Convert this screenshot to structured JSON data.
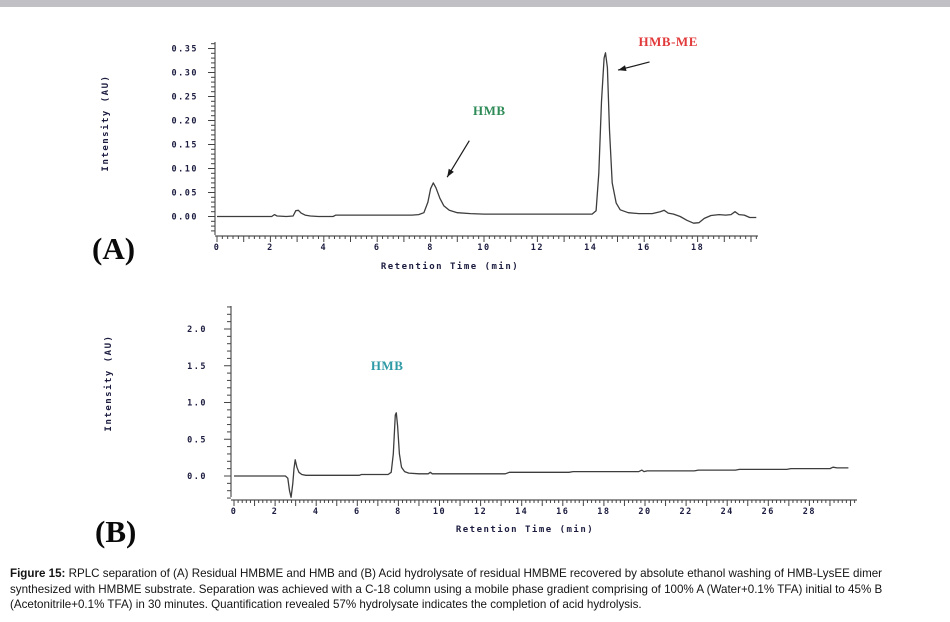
{
  "page": {
    "top_bar_color": "#c1c1c5",
    "background": "#ffffff"
  },
  "caption": {
    "label": "Figure 15:",
    "text": " RPLC separation of (A) Residual HMBME and HMB and (B) Acid hydrolysate of residual HMBME recovered by absolute ethanol washing of HMB-LysEE dimer synthesized with HMBME substrate. Separation was achieved with a C-18 column using a mobile phase gradient comprising of 100% A (Water+0.1% TFA) initial to 45% B (Acetonitrile+0.1% TFA) in 30 minutes. Quantification revealed 57% hydrolysate indicates the completion of acid hydrolysis."
  },
  "chart_data": [
    {
      "type": "line",
      "panel_label": "(A)",
      "xlabel": "Retention Time (min)",
      "ylabel": "Intensity (AU)",
      "xlim": [
        0,
        20.3
      ],
      "ylim": [
        -0.04,
        0.37
      ],
      "grid": false,
      "axis": {
        "x_minor": 0.2,
        "x_minor_max": 20.2,
        "y_minor": 0.01,
        "y_minor_min": -0.03,
        "y_minor_max": 0.36,
        "y_major": 0.05
      },
      "x_ticks": [
        {
          "v": 0,
          "label": "0"
        },
        {
          "v": 2,
          "label": "2"
        },
        {
          "v": 4,
          "label": "4"
        },
        {
          "v": 6,
          "label": "6"
        },
        {
          "v": 8,
          "label": "8"
        },
        {
          "v": 10,
          "label": "10"
        },
        {
          "v": 12,
          "label": "12"
        },
        {
          "v": 14,
          "label": "14"
        },
        {
          "v": 16,
          "label": "16"
        },
        {
          "v": 18,
          "label": "18"
        }
      ],
      "y_ticks": [
        {
          "v": 0.0,
          "label": "0.00"
        },
        {
          "v": 0.05,
          "label": "0.05"
        },
        {
          "v": 0.1,
          "label": "0.10"
        },
        {
          "v": 0.15,
          "label": "0.15"
        },
        {
          "v": 0.2,
          "label": "0.20"
        },
        {
          "v": 0.25,
          "label": "0.25"
        },
        {
          "v": 0.3,
          "label": "0.30"
        },
        {
          "v": 0.35,
          "label": "0.35"
        }
      ],
      "annotations": [
        {
          "text": "HMB",
          "color": "#2e8b57",
          "t": 10.2,
          "au": 0.219,
          "arrow": {
            "t1": 9.45,
            "au1": 0.158,
            "t2": 8.62,
            "au2": 0.082
          }
        },
        {
          "text": "HMB-ME",
          "color": "#e23a3a",
          "t": 16.9,
          "au": 0.363,
          "arrow": {
            "t1": 16.2,
            "au1": 0.322,
            "t2": 15.02,
            "au2": 0.305
          }
        }
      ],
      "series": [
        {
          "name": "UV trace",
          "color": "#3d3d3d",
          "points": [
            [
              0,
              0
            ],
            [
              1,
              0
            ],
            [
              2.05,
              0
            ],
            [
              2.15,
              0.004
            ],
            [
              2.25,
              0.001
            ],
            [
              2.6,
              0
            ],
            [
              2.85,
              0.001
            ],
            [
              2.95,
              0.012
            ],
            [
              3.05,
              0.013
            ],
            [
              3.15,
              0.007
            ],
            [
              3.3,
              0.003
            ],
            [
              3.5,
              0.001
            ],
            [
              3.8,
              0
            ],
            [
              4.35,
              0
            ],
            [
              4.45,
              0.003
            ],
            [
              5.5,
              0.003
            ],
            [
              6.5,
              0.003
            ],
            [
              7.3,
              0.003
            ],
            [
              7.55,
              0.004
            ],
            [
              7.75,
              0.008
            ],
            [
              7.9,
              0.03
            ],
            [
              8.0,
              0.058
            ],
            [
              8.1,
              0.07
            ],
            [
              8.2,
              0.06
            ],
            [
              8.35,
              0.038
            ],
            [
              8.5,
              0.022
            ],
            [
              8.7,
              0.013
            ],
            [
              9.0,
              0.008
            ],
            [
              9.5,
              0.006
            ],
            [
              10,
              0.005
            ],
            [
              11,
              0.005
            ],
            [
              12,
              0.005
            ],
            [
              13,
              0.005
            ],
            [
              14.05,
              0.005
            ],
            [
              14.2,
              0.012
            ],
            [
              14.3,
              0.09
            ],
            [
              14.4,
              0.24
            ],
            [
              14.5,
              0.33
            ],
            [
              14.55,
              0.341
            ],
            [
              14.62,
              0.31
            ],
            [
              14.7,
              0.18
            ],
            [
              14.8,
              0.07
            ],
            [
              14.95,
              0.028
            ],
            [
              15.1,
              0.014
            ],
            [
              15.4,
              0.008
            ],
            [
              15.8,
              0.006
            ],
            [
              16.3,
              0.006
            ],
            [
              16.6,
              0.01
            ],
            [
              16.75,
              0.013
            ],
            [
              16.9,
              0.007
            ],
            [
              17.1,
              0.005
            ],
            [
              17.35,
              0
            ],
            [
              17.6,
              -0.008
            ],
            [
              17.85,
              -0.014
            ],
            [
              18.05,
              -0.013
            ],
            [
              18.25,
              -0.004
            ],
            [
              18.5,
              0.002
            ],
            [
              18.8,
              0.004
            ],
            [
              19.05,
              0.003
            ],
            [
              19.25,
              0.004
            ],
            [
              19.4,
              0.01
            ],
            [
              19.55,
              0.004
            ],
            [
              19.75,
              0.003
            ],
            [
              19.95,
              -0.002
            ],
            [
              20.2,
              -0.002
            ]
          ]
        }
      ]
    },
    {
      "type": "line",
      "panel_label": "(B)",
      "xlabel": "Retention Time (min)",
      "ylabel": "Intensity (AU)",
      "xlim": [
        0,
        30.3
      ],
      "ylim": [
        -0.35,
        2.32
      ],
      "grid": false,
      "axis": {
        "x_minor": 0.2,
        "x_minor_max": 30.1,
        "y_minor": 0.1,
        "y_minor_min": -0.3,
        "y_minor_max": 2.3,
        "y_major": 0.5
      },
      "x_ticks": [
        {
          "v": 0,
          "label": "0"
        },
        {
          "v": 2,
          "label": "2"
        },
        {
          "v": 4,
          "label": "4"
        },
        {
          "v": 6,
          "label": "6"
        },
        {
          "v": 8,
          "label": "8"
        },
        {
          "v": 10,
          "label": "10"
        },
        {
          "v": 12,
          "label": "12"
        },
        {
          "v": 14,
          "label": "14"
        },
        {
          "v": 16,
          "label": "16"
        },
        {
          "v": 18,
          "label": "18"
        },
        {
          "v": 20,
          "label": "20"
        },
        {
          "v": 22,
          "label": "22"
        },
        {
          "v": 24,
          "label": "24"
        },
        {
          "v": 26,
          "label": "26"
        },
        {
          "v": 28,
          "label": "28"
        }
      ],
      "y_ticks": [
        {
          "v": 0.0,
          "label": "0.0"
        },
        {
          "v": 0.5,
          "label": "0.5"
        },
        {
          "v": 1.0,
          "label": "1.0"
        },
        {
          "v": 1.5,
          "label": "1.5"
        },
        {
          "v": 2.0,
          "label": "2.0"
        }
      ],
      "annotations": [
        {
          "text": "HMB",
          "color": "#2e9aa6",
          "t": 7.45,
          "au": 1.5
        }
      ],
      "series": [
        {
          "name": "UV trace",
          "color": "#3d3d3d",
          "points": [
            [
              0,
              0
            ],
            [
              1,
              0
            ],
            [
              2,
              0
            ],
            [
              2.5,
              0
            ],
            [
              2.62,
              -0.03
            ],
            [
              2.7,
              -0.2
            ],
            [
              2.78,
              -0.29
            ],
            [
              2.86,
              -0.1
            ],
            [
              2.92,
              0.1
            ],
            [
              2.98,
              0.22
            ],
            [
              3.06,
              0.12
            ],
            [
              3.16,
              0.05
            ],
            [
              3.3,
              0.02
            ],
            [
              3.5,
              0.01
            ],
            [
              4.5,
              0.01
            ],
            [
              5.5,
              0.01
            ],
            [
              6.1,
              0.01
            ],
            [
              6.2,
              0.02
            ],
            [
              7.0,
              0.02
            ],
            [
              7.5,
              0.02
            ],
            [
              7.65,
              0.05
            ],
            [
              7.75,
              0.3
            ],
            [
              7.85,
              0.83
            ],
            [
              7.9,
              0.86
            ],
            [
              7.96,
              0.68
            ],
            [
              8.05,
              0.3
            ],
            [
              8.15,
              0.12
            ],
            [
              8.3,
              0.06
            ],
            [
              8.5,
              0.04
            ],
            [
              9.0,
              0.03
            ],
            [
              9.45,
              0.03
            ],
            [
              9.55,
              0.05
            ],
            [
              9.65,
              0.03
            ],
            [
              10.5,
              0.03
            ],
            [
              12,
              0.03
            ],
            [
              13.2,
              0.03
            ],
            [
              13.4,
              0.05
            ],
            [
              14.5,
              0.05
            ],
            [
              16.3,
              0.05
            ],
            [
              16.5,
              0.06
            ],
            [
              18,
              0.06
            ],
            [
              19.7,
              0.06
            ],
            [
              19.85,
              0.08
            ],
            [
              19.95,
              0.06
            ],
            [
              20.1,
              0.07
            ],
            [
              21.5,
              0.07
            ],
            [
              22.4,
              0.07
            ],
            [
              22.6,
              0.08
            ],
            [
              23.5,
              0.08
            ],
            [
              24.4,
              0.08
            ],
            [
              24.6,
              0.09
            ],
            [
              26,
              0.09
            ],
            [
              26.9,
              0.09
            ],
            [
              27.1,
              0.1
            ],
            [
              28.5,
              0.1
            ],
            [
              29.0,
              0.1
            ],
            [
              29.15,
              0.12
            ],
            [
              29.35,
              0.11
            ],
            [
              29.9,
              0.11
            ]
          ]
        }
      ]
    }
  ]
}
